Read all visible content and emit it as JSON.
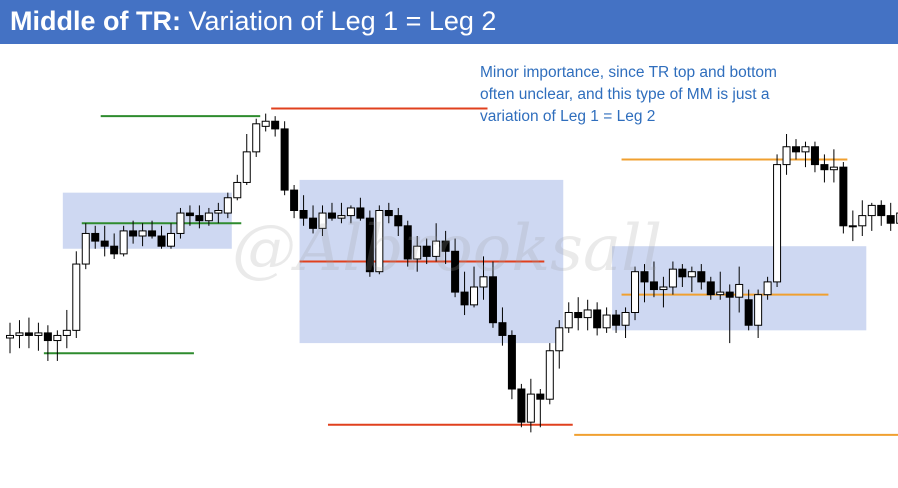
{
  "header": {
    "title_bold": "Middle of TR:",
    "title_rest": " Variation of Leg 1 = Leg 2"
  },
  "note": {
    "lines": [
      "Minor importance, since TR top and bottom",
      "often unclear, and this type of MM is just a",
      "variation of Leg 1 = Leg 2"
    ]
  },
  "watermark": "@Albrooksall",
  "colors": {
    "title_bg": "#4472c4",
    "note_text": "#2f6ebd",
    "range_box": "#c5d1f0",
    "green": "#2e8b2e",
    "red": "#e0401e",
    "orange": "#f0a030",
    "bull": "#ffffff",
    "bear": "#000000"
  },
  "chart_data": {
    "type": "candlestick",
    "price_axis": [
      0,
      100
    ],
    "candles": [
      {
        "o": 40,
        "h": 46,
        "l": 34,
        "c": 41
      },
      {
        "o": 41,
        "h": 47,
        "l": 36,
        "c": 42
      },
      {
        "o": 42,
        "h": 48,
        "l": 36,
        "c": 41
      },
      {
        "o": 41,
        "h": 46,
        "l": 35,
        "c": 42
      },
      {
        "o": 42,
        "h": 45,
        "l": 31,
        "c": 39
      },
      {
        "o": 39,
        "h": 43,
        "l": 31,
        "c": 41
      },
      {
        "o": 41,
        "h": 51,
        "l": 36,
        "c": 43
      },
      {
        "o": 43,
        "h": 74,
        "l": 40,
        "c": 69
      },
      {
        "o": 69,
        "h": 85,
        "l": 67,
        "c": 81
      },
      {
        "o": 81,
        "h": 84,
        "l": 75,
        "c": 78
      },
      {
        "o": 78,
        "h": 84,
        "l": 72,
        "c": 76
      },
      {
        "o": 76,
        "h": 81,
        "l": 71,
        "c": 73
      },
      {
        "o": 73,
        "h": 84,
        "l": 72,
        "c": 82
      },
      {
        "o": 82,
        "h": 86,
        "l": 77,
        "c": 80
      },
      {
        "o": 80,
        "h": 85,
        "l": 76,
        "c": 82
      },
      {
        "o": 82,
        "h": 86,
        "l": 79,
        "c": 80
      },
      {
        "o": 80,
        "h": 84,
        "l": 75,
        "c": 76
      },
      {
        "o": 76,
        "h": 85,
        "l": 75,
        "c": 81
      },
      {
        "o": 81,
        "h": 91,
        "l": 79,
        "c": 89
      },
      {
        "o": 89,
        "h": 92,
        "l": 84,
        "c": 88
      },
      {
        "o": 88,
        "h": 92,
        "l": 83,
        "c": 86
      },
      {
        "o": 86,
        "h": 91,
        "l": 84,
        "c": 89
      },
      {
        "o": 89,
        "h": 93,
        "l": 85,
        "c": 90
      },
      {
        "o": 89,
        "h": 97,
        "l": 87,
        "c": 95
      },
      {
        "o": 95,
        "h": 104,
        "l": 94,
        "c": 101
      },
      {
        "o": 101,
        "h": 120,
        "l": 100,
        "c": 113
      },
      {
        "o": 113,
        "h": 126,
        "l": 111,
        "c": 124
      },
      {
        "o": 123,
        "h": 128,
        "l": 121,
        "c": 125
      },
      {
        "o": 125,
        "h": 127,
        "l": 119,
        "c": 122
      },
      {
        "o": 122,
        "h": 125,
        "l": 96,
        "c": 98
      },
      {
        "o": 98,
        "h": 100,
        "l": 87,
        "c": 90
      },
      {
        "o": 90,
        "h": 96,
        "l": 84,
        "c": 87
      },
      {
        "o": 87,
        "h": 92,
        "l": 81,
        "c": 83
      },
      {
        "o": 83,
        "h": 92,
        "l": 80,
        "c": 89
      },
      {
        "o": 89,
        "h": 93,
        "l": 86,
        "c": 87
      },
      {
        "o": 87,
        "h": 93,
        "l": 85,
        "c": 88
      },
      {
        "o": 88,
        "h": 92,
        "l": 85,
        "c": 91
      },
      {
        "o": 91,
        "h": 95,
        "l": 86,
        "c": 87
      },
      {
        "o": 87,
        "h": 90,
        "l": 64,
        "c": 66
      },
      {
        "o": 66,
        "h": 92,
        "l": 65,
        "c": 90
      },
      {
        "o": 90,
        "h": 93,
        "l": 85,
        "c": 88
      },
      {
        "o": 88,
        "h": 91,
        "l": 80,
        "c": 84
      },
      {
        "o": 84,
        "h": 86,
        "l": 68,
        "c": 71
      },
      {
        "o": 71,
        "h": 80,
        "l": 66,
        "c": 76
      },
      {
        "o": 76,
        "h": 79,
        "l": 69,
        "c": 72
      },
      {
        "o": 72,
        "h": 85,
        "l": 70,
        "c": 78
      },
      {
        "o": 78,
        "h": 82,
        "l": 69,
        "c": 74
      },
      {
        "o": 74,
        "h": 79,
        "l": 56,
        "c": 58
      },
      {
        "o": 58,
        "h": 66,
        "l": 49,
        "c": 53
      },
      {
        "o": 53,
        "h": 68,
        "l": 52,
        "c": 60
      },
      {
        "o": 60,
        "h": 72,
        "l": 55,
        "c": 64
      },
      {
        "o": 64,
        "h": 70,
        "l": 44,
        "c": 46
      },
      {
        "o": 46,
        "h": 52,
        "l": 37,
        "c": 41
      },
      {
        "o": 41,
        "h": 43,
        "l": 16,
        "c": 20
      },
      {
        "o": 20,
        "h": 22,
        "l": 5,
        "c": 7
      },
      {
        "o": 7,
        "h": 24,
        "l": 3,
        "c": 18
      },
      {
        "o": 18,
        "h": 20,
        "l": 5,
        "c": 16
      },
      {
        "o": 16,
        "h": 38,
        "l": 14,
        "c": 35
      },
      {
        "o": 35,
        "h": 47,
        "l": 28,
        "c": 44
      },
      {
        "o": 44,
        "h": 54,
        "l": 42,
        "c": 50
      },
      {
        "o": 50,
        "h": 56,
        "l": 43,
        "c": 48
      },
      {
        "o": 48,
        "h": 55,
        "l": 43,
        "c": 51
      },
      {
        "o": 51,
        "h": 54,
        "l": 41,
        "c": 44
      },
      {
        "o": 44,
        "h": 52,
        "l": 42,
        "c": 49
      },
      {
        "o": 49,
        "h": 51,
        "l": 42,
        "c": 45
      },
      {
        "o": 45,
        "h": 52,
        "l": 40,
        "c": 50
      },
      {
        "o": 50,
        "h": 68,
        "l": 47,
        "c": 66
      },
      {
        "o": 66,
        "h": 69,
        "l": 54,
        "c": 62
      },
      {
        "o": 62,
        "h": 70,
        "l": 56,
        "c": 59
      },
      {
        "o": 59,
        "h": 64,
        "l": 52,
        "c": 60
      },
      {
        "o": 60,
        "h": 70,
        "l": 57,
        "c": 67
      },
      {
        "o": 67,
        "h": 69,
        "l": 60,
        "c": 64
      },
      {
        "o": 64,
        "h": 68,
        "l": 58,
        "c": 66
      },
      {
        "o": 66,
        "h": 69,
        "l": 59,
        "c": 62
      },
      {
        "o": 62,
        "h": 64,
        "l": 55,
        "c": 57
      },
      {
        "o": 57,
        "h": 66,
        "l": 55,
        "c": 58
      },
      {
        "o": 58,
        "h": 61,
        "l": 38,
        "c": 56
      },
      {
        "o": 56,
        "h": 68,
        "l": 50,
        "c": 61
      },
      {
        "o": 55,
        "h": 59,
        "l": 43,
        "c": 45
      },
      {
        "o": 45,
        "h": 59,
        "l": 40,
        "c": 57
      },
      {
        "o": 57,
        "h": 64,
        "l": 55,
        "c": 62
      },
      {
        "o": 62,
        "h": 112,
        "l": 60,
        "c": 108
      },
      {
        "o": 108,
        "h": 120,
        "l": 104,
        "c": 115
      },
      {
        "o": 115,
        "h": 118,
        "l": 110,
        "c": 113
      },
      {
        "o": 113,
        "h": 117,
        "l": 107,
        "c": 115
      },
      {
        "o": 115,
        "h": 117,
        "l": 105,
        "c": 108
      },
      {
        "o": 108,
        "h": 112,
        "l": 101,
        "c": 106
      },
      {
        "o": 106,
        "h": 114,
        "l": 101,
        "c": 107
      },
      {
        "o": 107,
        "h": 109,
        "l": 81,
        "c": 84
      },
      {
        "o": 84,
        "h": 90,
        "l": 78,
        "c": 84
      },
      {
        "o": 84,
        "h": 94,
        "l": 80,
        "c": 88
      },
      {
        "o": 88,
        "h": 93,
        "l": 82,
        "c": 92
      },
      {
        "o": 92,
        "h": 94,
        "l": 84,
        "c": 88
      },
      {
        "o": 88,
        "h": 93,
        "l": 82,
        "c": 85
      },
      {
        "o": 85,
        "h": 90,
        "l": 78,
        "c": 89
      },
      {
        "o": 89,
        "h": 92,
        "l": 84,
        "c": 86
      },
      {
        "o": 86,
        "h": 89,
        "l": 80,
        "c": 83
      },
      {
        "o": 83,
        "h": 95,
        "l": 82,
        "c": 93
      }
    ],
    "boxes": [
      {
        "from": 6,
        "to": 23,
        "lo": 75,
        "hi": 97
      },
      {
        "from": 31,
        "to": 58,
        "lo": 38,
        "hi": 102
      },
      {
        "from": 64,
        "to": 90,
        "lo": 43,
        "hi": 76
      }
    ],
    "levels": [
      {
        "color": "green",
        "from": 4,
        "to": 19,
        "price": 34
      },
      {
        "color": "green",
        "from": 8,
        "to": 24,
        "price": 85
      },
      {
        "color": "green",
        "from": 10,
        "to": 26,
        "price": 127
      },
      {
        "color": "red",
        "from": 28,
        "to": 50,
        "price": 130
      },
      {
        "color": "red",
        "from": 31,
        "to": 56,
        "price": 70
      },
      {
        "color": "red",
        "from": 34,
        "to": 59,
        "price": 6
      },
      {
        "color": "orange",
        "from": 65,
        "to": 88,
        "price": 110
      },
      {
        "color": "orange",
        "from": 65,
        "to": 86,
        "price": 57
      },
      {
        "color": "orange",
        "from": 60,
        "to": 95,
        "price": 2
      }
    ]
  }
}
